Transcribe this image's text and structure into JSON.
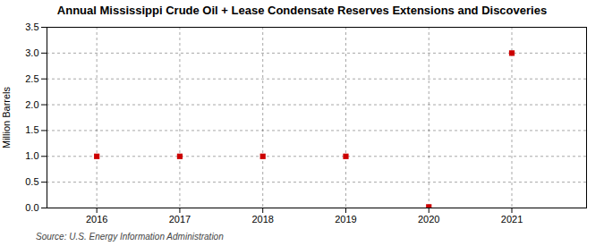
{
  "chart_data": {
    "type": "scatter",
    "title": "Annual Mississippi Crude Oil + Lease Condensate Reserves Extensions and Discoveries",
    "ylabel": "Million Barrels",
    "annotations": [
      "Source: U.S. Energy Information Administration"
    ],
    "x": [
      2016,
      2017,
      2018,
      2019,
      2020,
      2021
    ],
    "values": [
      1.0,
      1.0,
      1.0,
      1.0,
      0.02,
      3.0
    ],
    "color": "#cc0000",
    "marker": "square",
    "xlim": [
      2015.4,
      2021.9
    ],
    "xticks": [
      2016,
      2017,
      2018,
      2019,
      2020,
      2021
    ],
    "ylim": [
      0.0,
      3.5
    ],
    "yticks": [
      {
        "value": 0,
        "label": "0.0"
      },
      0.5,
      {
        "value": 1,
        "label": "1.0"
      },
      1.5,
      {
        "value": 2,
        "label": "2.0"
      },
      2.5,
      {
        "value": 3,
        "label": "3.0"
      },
      3.5
    ],
    "grid": true
  }
}
